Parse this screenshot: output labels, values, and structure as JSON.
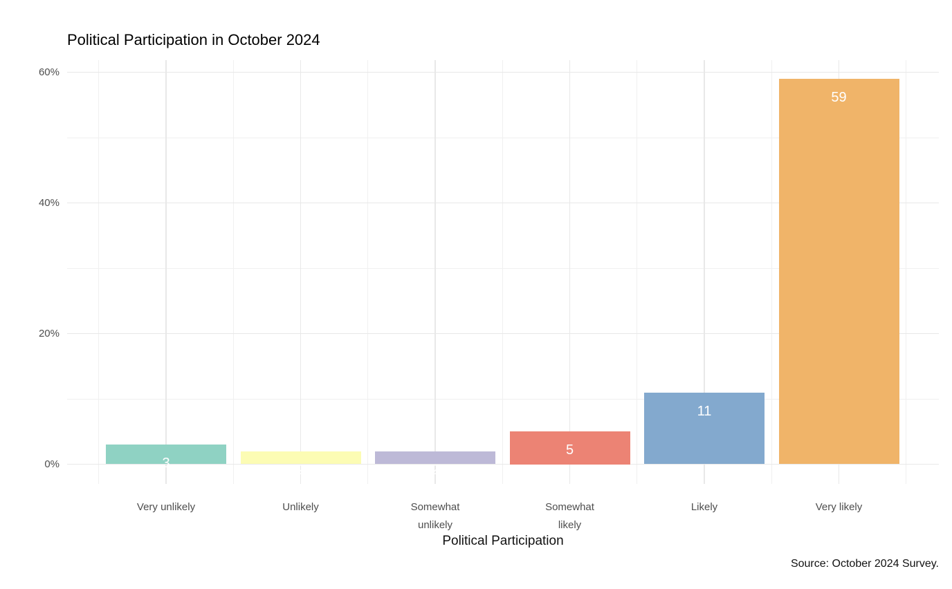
{
  "chart_data": {
    "type": "bar",
    "title": "Political Participation in October 2024",
    "xlabel": "Political Participation",
    "ylabel": "",
    "source_note": "Source: October 2024 Survey.",
    "categories": [
      "Very unlikely",
      "Unlikely",
      "Somewhat\nunlikely",
      "Somewhat\nlikely",
      "Likely",
      "Very likely"
    ],
    "values": [
      3,
      2,
      2,
      5,
      11,
      59
    ],
    "value_labels": [
      "3",
      "2",
      "2",
      "5",
      "11",
      "59"
    ],
    "bar_colors": [
      "#8FD2C3",
      "#FCFCB4",
      "#BDB9D7",
      "#EC8374",
      "#83A9CE",
      "#F0B469"
    ],
    "value_label_color": "#FFFFFF",
    "y_ticks": [
      {
        "label": "0%",
        "value": 0
      },
      {
        "label": "20%",
        "value": 20
      },
      {
        "label": "40%",
        "value": 40
      },
      {
        "label": "60%",
        "value": 60
      }
    ],
    "y_minor_values": [
      10,
      30,
      50
    ],
    "ylim": [
      0,
      62
    ],
    "grid": "on",
    "legend": "none",
    "colors": {
      "grid_major": "#E8E8E8",
      "grid_minor": "#F0F0F0",
      "axis_text": "#4D4D4D",
      "title_text": "#000000"
    }
  }
}
